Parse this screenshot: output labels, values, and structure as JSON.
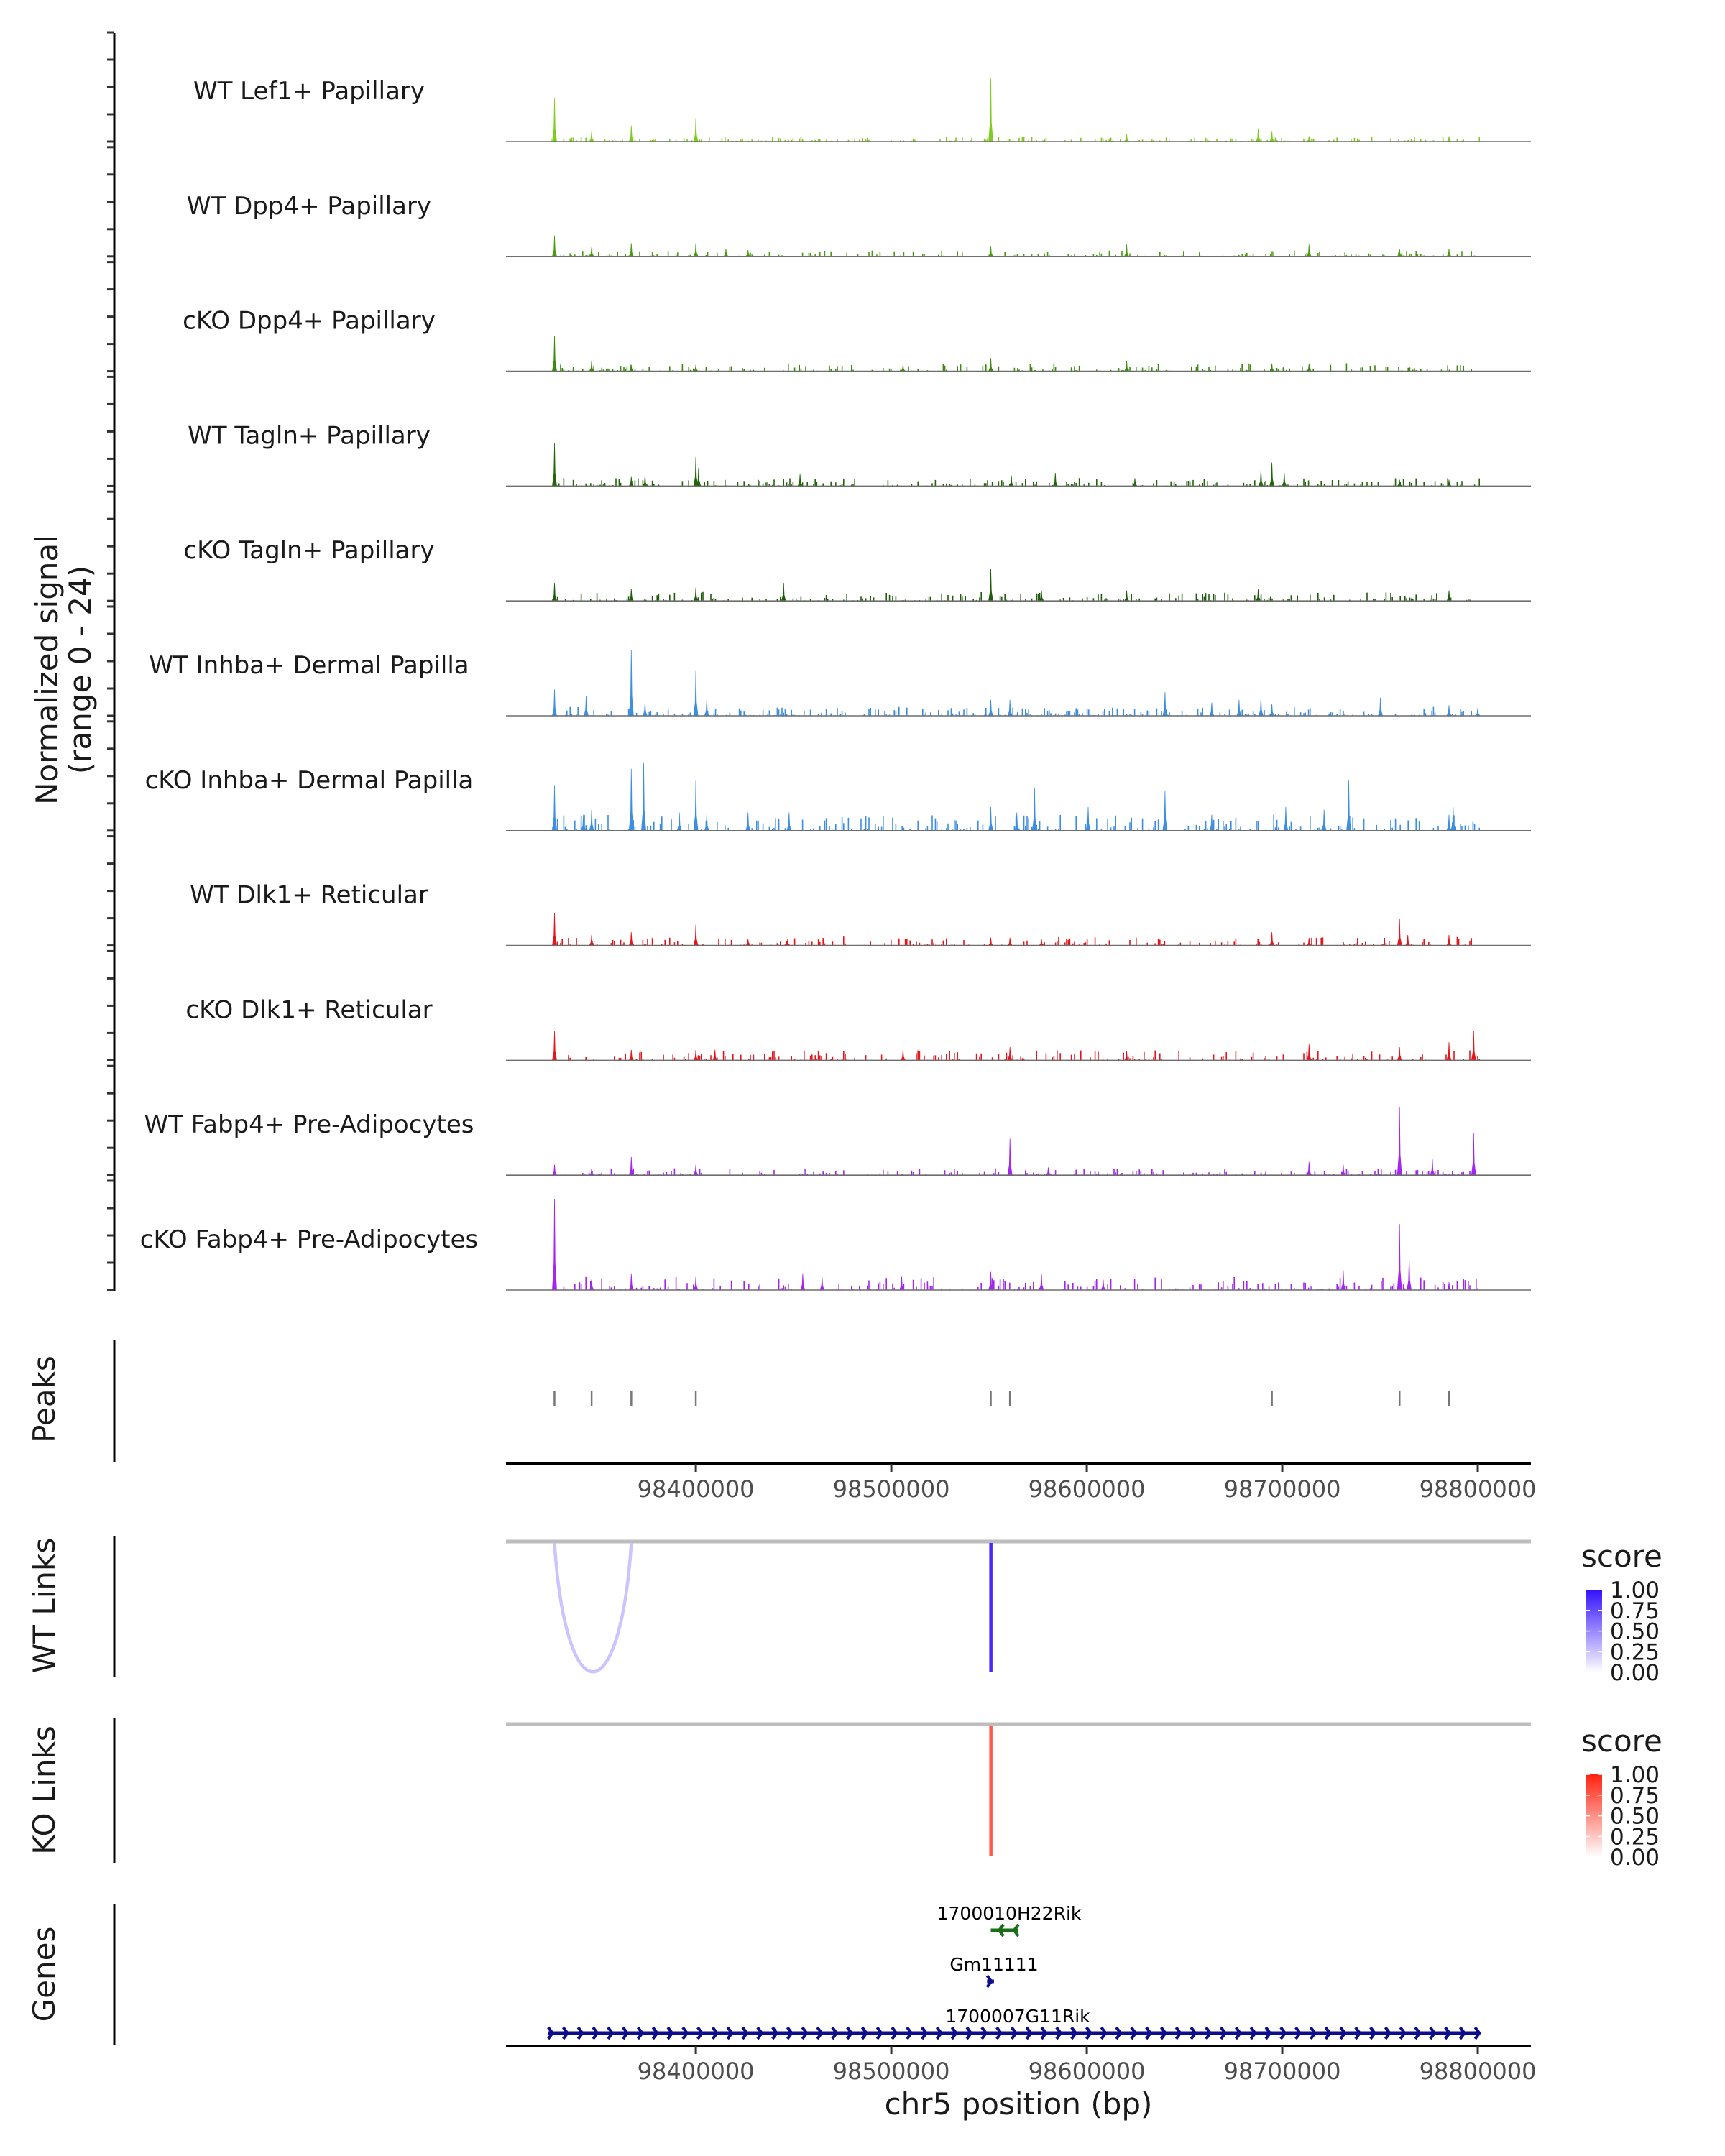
{
  "chart_data": {
    "type": "genome-coverage-tracks",
    "chromosome": "chr5",
    "xlabel": "chr5 position (bp)",
    "xlim": [
      98302900,
      98827200
    ],
    "xticks": [
      98400000,
      98500000,
      98600000,
      98700000,
      98800000
    ],
    "xtick_labels": [
      "98400000",
      "98500000",
      "98600000",
      "98700000",
      "98800000"
    ],
    "ylabel_line1": "Normalized signal",
    "ylabel_line2": "(range 0 - 24)",
    "ylim": [
      0,
      24
    ],
    "tracks": [
      {
        "name": "WT Lef1+ Papillary",
        "color": "#7fcc1f",
        "noise": 0.5,
        "peaks": [
          [
            98327700,
            9.5
          ],
          [
            98346700,
            2.3
          ],
          [
            98367000,
            3.5
          ],
          [
            98400000,
            5.2
          ],
          [
            98550900,
            13.9
          ],
          [
            98620400,
            1.7
          ],
          [
            98687700,
            2.9
          ],
          [
            98694700,
            2.3
          ],
          [
            98713700,
            1.2
          ],
          [
            98785300,
            1.2
          ]
        ]
      },
      {
        "name": "WT Dpp4+ Papillary",
        "color": "#4c9a12",
        "noise": 0.6,
        "peaks": [
          [
            98327700,
            4.6
          ],
          [
            98346700,
            2.0
          ],
          [
            98367000,
            2.9
          ],
          [
            98400000,
            2.9
          ],
          [
            98415400,
            1.7
          ],
          [
            98426700,
            1.4
          ],
          [
            98550900,
            2.3
          ],
          [
            98620400,
            2.6
          ],
          [
            98713700,
            2.6
          ],
          [
            98760000,
            1.7
          ],
          [
            98785300,
            1.7
          ]
        ]
      },
      {
        "name": "cKO Dpp4+ Papillary",
        "color": "#3b8a0c",
        "noise": 0.8,
        "peaks": [
          [
            98327700,
            7.8
          ],
          [
            98346700,
            2.3
          ],
          [
            98367000,
            1.4
          ],
          [
            98400000,
            1.4
          ],
          [
            98506000,
            1.4
          ],
          [
            98550900,
            2.9
          ],
          [
            98620400,
            2.3
          ],
          [
            98694700,
            1.7
          ],
          [
            98713700,
            1.7
          ]
        ]
      },
      {
        "name": "WT Tagln+ Papillary",
        "color": "#23660a",
        "noise": 0.8,
        "peaks": [
          [
            98327700,
            9.5
          ],
          [
            98367000,
            2.0
          ],
          [
            98374000,
            2.3
          ],
          [
            98400000,
            6.4
          ],
          [
            98401400,
            4.0
          ],
          [
            98453300,
            2.6
          ],
          [
            98561400,
            2.3
          ],
          [
            98583900,
            2.9
          ],
          [
            98624600,
            1.7
          ],
          [
            98689100,
            3.5
          ],
          [
            98694700,
            5.2
          ],
          [
            98701000,
            2.9
          ],
          [
            98760000,
            1.4
          ],
          [
            98785300,
            1.4
          ]
        ]
      },
      {
        "name": "cKO Tagln+ Papillary",
        "color": "#1f5c0c",
        "noise": 0.9,
        "peaks": [
          [
            98327700,
            4.0
          ],
          [
            98367000,
            2.6
          ],
          [
            98400000,
            2.9
          ],
          [
            98444900,
            4.0
          ],
          [
            98550900,
            7.0
          ],
          [
            98576800,
            2.3
          ],
          [
            98620400,
            2.3
          ],
          [
            98687700,
            2.6
          ],
          [
            98785300,
            2.3
          ]
        ]
      },
      {
        "name": "WT Inhba+ Dermal Papilla",
        "color": "#3d8ee0",
        "noise": 0.9,
        "peaks": [
          [
            98327700,
            5.8
          ],
          [
            98343900,
            4.3
          ],
          [
            98367000,
            14.5
          ],
          [
            98374000,
            2.9
          ],
          [
            98400000,
            10.0
          ],
          [
            98405600,
            3.5
          ],
          [
            98550900,
            3.5
          ],
          [
            98560700,
            3.5
          ],
          [
            98640000,
            5.2
          ],
          [
            98663900,
            2.9
          ],
          [
            98677900,
            3.5
          ],
          [
            98689100,
            4.0
          ],
          [
            98694700,
            2.6
          ],
          [
            98750200,
            4.0
          ],
          [
            98785300,
            2.3
          ],
          [
            98800000,
            1.7
          ]
        ]
      },
      {
        "name": "cKO Inhba+ Dermal Papilla",
        "color": "#3d8ee0",
        "noise": 1.6,
        "peaks": [
          [
            98327700,
            10.0
          ],
          [
            98342500,
            3.5
          ],
          [
            98346700,
            4.6
          ],
          [
            98367000,
            13.6
          ],
          [
            98373300,
            15.0
          ],
          [
            98391600,
            4.0
          ],
          [
            98400000,
            11.0
          ],
          [
            98405600,
            3.5
          ],
          [
            98426700,
            4.0
          ],
          [
            98447700,
            4.0
          ],
          [
            98550900,
            5.2
          ],
          [
            98564200,
            4.0
          ],
          [
            98573300,
            9.3
          ],
          [
            98600700,
            5.2
          ],
          [
            98640000,
            8.7
          ],
          [
            98663900,
            3.5
          ],
          [
            98701800,
            5.2
          ],
          [
            98721400,
            4.6
          ],
          [
            98734000,
            11.0
          ],
          [
            98785300,
            3.5
          ],
          [
            98787400,
            5.2
          ]
        ]
      },
      {
        "name": "WT Dlk1+ Reticular",
        "color": "#e8141c",
        "noise": 0.9,
        "peaks": [
          [
            98327700,
            7.2
          ],
          [
            98346700,
            2.3
          ],
          [
            98367000,
            2.9
          ],
          [
            98400000,
            4.6
          ],
          [
            98426700,
            1.4
          ],
          [
            98447000,
            1.4
          ],
          [
            98550900,
            1.7
          ],
          [
            98560700,
            1.7
          ],
          [
            98576800,
            1.4
          ],
          [
            98694700,
            2.9
          ],
          [
            98713700,
            1.7
          ],
          [
            98760000,
            5.8
          ],
          [
            98764200,
            2.3
          ],
          [
            98785300,
            2.3
          ]
        ]
      },
      {
        "name": "cKO Dlk1+ Reticular",
        "color": "#e8141c",
        "noise": 1.0,
        "peaks": [
          [
            98327700,
            6.4
          ],
          [
            98367000,
            2.3
          ],
          [
            98400000,
            2.3
          ],
          [
            98409800,
            2.3
          ],
          [
            98506000,
            2.3
          ],
          [
            98560700,
            2.9
          ],
          [
            98620400,
            2.0
          ],
          [
            98713700,
            3.5
          ],
          [
            98760000,
            2.9
          ],
          [
            98785300,
            4.0
          ],
          [
            98797900,
            6.4
          ]
        ]
      },
      {
        "name": "WT Fabp4+ Pre-Adipocytes",
        "color": "#a424f0",
        "noise": 0.7,
        "peaks": [
          [
            98327700,
            2.3
          ],
          [
            98346700,
            1.4
          ],
          [
            98367000,
            4.0
          ],
          [
            98400000,
            2.3
          ],
          [
            98560700,
            8.0
          ],
          [
            98580300,
            1.7
          ],
          [
            98713700,
            2.9
          ],
          [
            98731200,
            2.3
          ],
          [
            98760000,
            15.0
          ],
          [
            98776800,
            3.5
          ],
          [
            98797900,
            9.3
          ]
        ]
      },
      {
        "name": "cKO Fabp4+ Pre-Adipocytes",
        "color": "#a424f0",
        "noise": 1.3,
        "peaks": [
          [
            98327700,
            20.0
          ],
          [
            98346700,
            2.3
          ],
          [
            98367000,
            3.5
          ],
          [
            98400000,
            2.9
          ],
          [
            98454700,
            3.5
          ],
          [
            98464600,
            2.9
          ],
          [
            98505300,
            2.9
          ],
          [
            98550900,
            4.0
          ],
          [
            98576800,
            3.5
          ],
          [
            98608400,
            2.3
          ],
          [
            98731200,
            4.3
          ],
          [
            98760000,
            14.5
          ],
          [
            98764900,
            7.0
          ],
          [
            98785300,
            1.7
          ]
        ]
      }
    ],
    "peaks_track": {
      "label": "Peaks",
      "positions": [
        98327700,
        98346700,
        98367000,
        98400000,
        98550900,
        98560700,
        98694700,
        98760000,
        98785300
      ]
    },
    "wt_links": {
      "label": "WT Links",
      "legend_title": "score",
      "legend_ticks": [
        "1.00",
        "0.75",
        "0.50",
        "0.25",
        "0.00"
      ],
      "low_color": "#ffffff",
      "high_color": "#3311ff",
      "links": [
        {
          "start": 98327700,
          "end": 98367000,
          "score": 0.25
        },
        {
          "start": 98550900,
          "end": 98551000,
          "score": 0.9
        }
      ]
    },
    "ko_links": {
      "label": "KO Links",
      "legend_title": "score",
      "legend_ticks": [
        "1.00",
        "0.75",
        "0.50",
        "0.25",
        "0.00"
      ],
      "low_color": "#ffffff",
      "high_color": "#ff2211",
      "links": [
        {
          "start": 98550900,
          "end": 98551000,
          "score": 0.75
        }
      ]
    },
    "genes": {
      "label": "Genes",
      "items": [
        {
          "name": "1700010H22Rik",
          "start": 98550900,
          "end": 98565000,
          "strand": "-",
          "color": "#1a6e1a"
        },
        {
          "name": "Gm11111",
          "start": 98549000,
          "end": 98552500,
          "strand": "+",
          "color": "#0d0d8c"
        },
        {
          "name": "1700007G11Rik",
          "start": 98324500,
          "end": 98801000,
          "strand": "+",
          "color": "#0d0d8c"
        }
      ]
    }
  }
}
